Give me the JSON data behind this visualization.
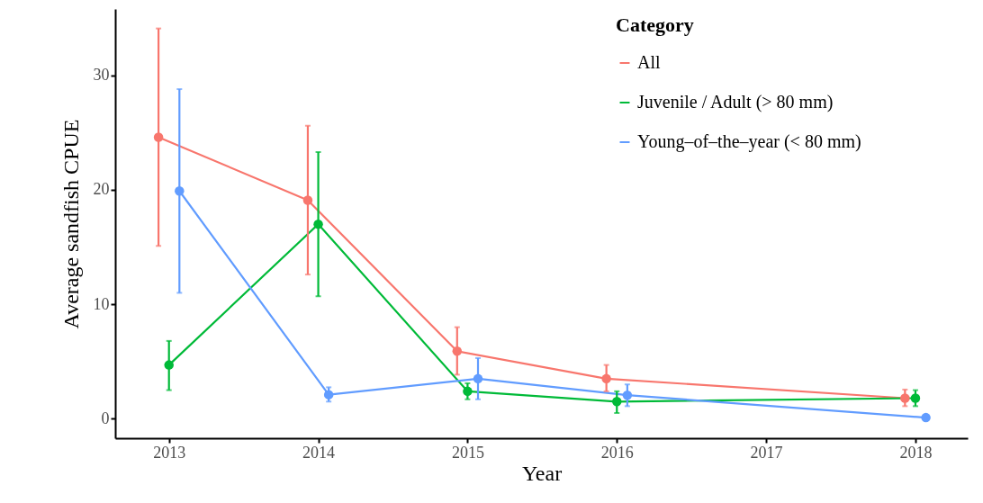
{
  "chart_data": {
    "type": "line",
    "xlabel": "Year",
    "ylabel": "Average sandfish CPUE",
    "legend_title": "Category",
    "legend": "top right",
    "grid": false,
    "marker": "circle",
    "line_style": "solid",
    "xlim": [
      2012.64,
      2018.35
    ],
    "xticks": [
      2013,
      2014,
      2015,
      2016,
      2017,
      2018
    ],
    "ylim": [
      -1.7,
      35.8
    ],
    "yticks": [
      0,
      10,
      20,
      30
    ],
    "series": [
      {
        "name": "All",
        "color": "#f8766d",
        "x": [
          2012.93,
          2013.93,
          2014.93,
          2015.93,
          2017.93
        ],
        "values": [
          24.6,
          19.1,
          5.9,
          3.5,
          1.8
        ],
        "errors": [
          [
            15.1,
            34.1
          ],
          [
            12.6,
            25.6
          ],
          [
            3.85,
            8.0
          ],
          [
            2.4,
            4.7
          ],
          [
            1.1,
            2.55
          ]
        ]
      },
      {
        "name": "Juvenile / Adult (> 80 mm)",
        "color": "#00ba38",
        "x": [
          2013,
          2014,
          2015,
          2016,
          2018
        ],
        "values": [
          4.7,
          17.0,
          2.4,
          1.5,
          1.8
        ],
        "errors": [
          [
            2.5,
            6.8
          ],
          [
            10.7,
            23.3
          ],
          [
            1.7,
            3.1
          ],
          [
            0.5,
            2.4
          ],
          [
            1.1,
            2.5
          ]
        ]
      },
      {
        "name": "Young–of–the–year (< 80 mm)",
        "color": "#619cff",
        "x": [
          2013.07,
          2014.07,
          2015.07,
          2016.07,
          2018.07
        ],
        "values": [
          19.9,
          2.1,
          3.5,
          2.06,
          0.1
        ],
        "errors": [
          [
            11.0,
            28.8
          ],
          [
            1.5,
            2.75
          ],
          [
            1.7,
            5.3
          ],
          [
            1.1,
            3.0
          ],
          null
        ]
      }
    ]
  }
}
